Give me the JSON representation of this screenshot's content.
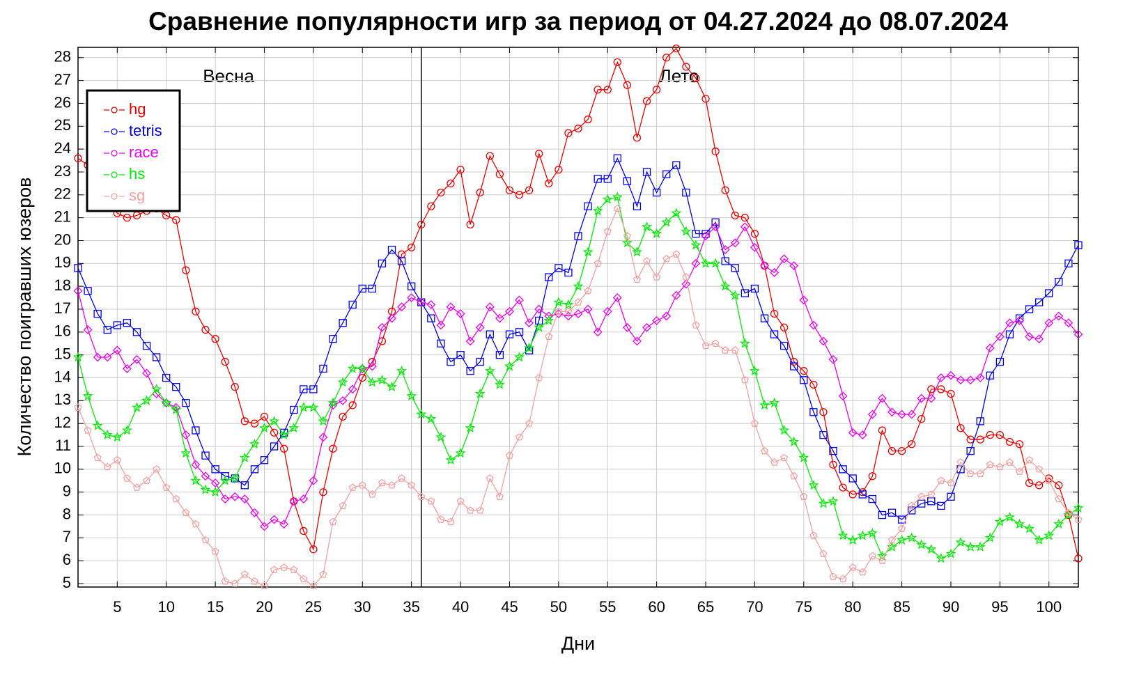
{
  "chart_data": {
    "type": "line",
    "title": "Сравнение популярности игр за период от 04.27.2024 до 08.07.2024",
    "xlabel": "Дни",
    "ylabel": "Количество поигравших юзеров",
    "annotations": [
      "Весна",
      "Лето"
    ],
    "vline": 36,
    "x": [
      1,
      2,
      3,
      4,
      5,
      6,
      7,
      8,
      9,
      10,
      11,
      12,
      13,
      14,
      15,
      16,
      17,
      18,
      19,
      20,
      21,
      22,
      23,
      24,
      25,
      26,
      27,
      28,
      29,
      30,
      31,
      32,
      33,
      34,
      35,
      36,
      37,
      38,
      39,
      40,
      41,
      42,
      43,
      44,
      45,
      46,
      47,
      48,
      49,
      50,
      51,
      52,
      53,
      54,
      55,
      56,
      57,
      58,
      59,
      60,
      61,
      62,
      63,
      64,
      65,
      66,
      67,
      68,
      69,
      70,
      71,
      72,
      73,
      74,
      75,
      76,
      77,
      78,
      79,
      80,
      81,
      82,
      83,
      84,
      85,
      86,
      87,
      88,
      89,
      90,
      91,
      92,
      93,
      94,
      95,
      96,
      97,
      98,
      99,
      100,
      101,
      102,
      103
    ],
    "xlim": [
      1,
      103
    ],
    "ylim": [
      4.85,
      28.45
    ],
    "xticks": [
      5,
      10,
      15,
      20,
      25,
      30,
      35,
      40,
      45,
      50,
      55,
      60,
      65,
      70,
      75,
      80,
      85,
      90,
      95,
      100
    ],
    "yticks": [
      5,
      6,
      7,
      8,
      9,
      10,
      11,
      12,
      13,
      14,
      15,
      16,
      17,
      18,
      19,
      20,
      21,
      22,
      23,
      24,
      25,
      26,
      27,
      28
    ],
    "grid": true,
    "legend": "upper left",
    "series": [
      {
        "name": "hg",
        "color": "#ee0000",
        "marker": "circle",
        "values": [
          23.6,
          23.3,
          22.5,
          21.8,
          21.2,
          21.0,
          21.1,
          21.3,
          21.4,
          21.1,
          20.9,
          18.7,
          16.9,
          16.1,
          15.7,
          14.7,
          13.6,
          12.1,
          12.0,
          12.3,
          11.6,
          10.9,
          8.6,
          7.3,
          6.5,
          9.0,
          10.9,
          12.3,
          12.8,
          14.0,
          14.7,
          15.6,
          16.9,
          19.4,
          19.7,
          20.7,
          21.5,
          22.1,
          22.5,
          23.1,
          20.7,
          22.1,
          23.7,
          22.9,
          22.2,
          22.0,
          22.2,
          23.8,
          22.5,
          23.1,
          24.7,
          24.9,
          25.3,
          26.6,
          26.6,
          27.8,
          26.8,
          24.5,
          26.1,
          26.6,
          28.0,
          28.4,
          27.6,
          27.1,
          26.2,
          23.9,
          22.2,
          21.1,
          21.0,
          20.3,
          18.9,
          16.8,
          16.2,
          14.7,
          14.3,
          13.7,
          12.5,
          10.2,
          9.2,
          8.9,
          9.0,
          9.7,
          11.7,
          10.8,
          10.8,
          11.1,
          12.2,
          13.5,
          13.5,
          13.3,
          11.8,
          11.3,
          11.3,
          11.5,
          11.5,
          11.2,
          11.1,
          9.4,
          9.3,
          9.6,
          9.3,
          8.0,
          6.1
        ]
      },
      {
        "name": "tetris",
        "color": "#0000ee",
        "marker": "square",
        "values": [
          18.8,
          17.8,
          16.8,
          16.1,
          16.3,
          16.4,
          16.0,
          15.4,
          14.9,
          14.0,
          13.6,
          12.9,
          11.7,
          10.6,
          10.0,
          9.7,
          9.6,
          9.3,
          10.0,
          10.4,
          11.0,
          11.6,
          12.6,
          13.5,
          13.5,
          14.4,
          15.7,
          16.4,
          17.2,
          17.9,
          17.9,
          19.0,
          19.6,
          19.1,
          18.0,
          17.3,
          16.6,
          15.5,
          14.7,
          15.0,
          14.3,
          14.7,
          15.9,
          15.0,
          15.9,
          16.0,
          15.2,
          16.5,
          18.4,
          18.8,
          18.6,
          20.2,
          21.5,
          22.7,
          22.7,
          23.6,
          22.6,
          21.5,
          23.0,
          22.1,
          22.9,
          23.3,
          22.1,
          20.3,
          20.3,
          20.8,
          19.1,
          18.8,
          17.7,
          17.9,
          16.6,
          15.9,
          15.4,
          14.5,
          13.9,
          12.5,
          11.5,
          10.8,
          10.0,
          9.6,
          8.9,
          8.7,
          8.0,
          8.1,
          7.8,
          8.2,
          8.5,
          8.6,
          8.4,
          8.8,
          10.0,
          10.8,
          12.1,
          14.1,
          14.7,
          15.9,
          16.6,
          17.0,
          17.3,
          17.7,
          18.2,
          19.0,
          19.8
        ]
      },
      {
        "name": "race",
        "color": "#ee00ee",
        "marker": "diamond",
        "values": [
          17.8,
          16.1,
          14.9,
          14.9,
          15.2,
          14.4,
          14.8,
          14.2,
          13.3,
          12.9,
          12.7,
          11.5,
          10.2,
          9.7,
          9.4,
          8.7,
          8.8,
          8.7,
          8.1,
          7.5,
          7.8,
          7.6,
          8.6,
          8.7,
          9.5,
          11.4,
          12.8,
          13.0,
          13.5,
          14.4,
          14.5,
          16.2,
          16.6,
          17.1,
          17.5,
          17.3,
          17.2,
          16.3,
          17.1,
          16.8,
          15.6,
          16.2,
          17.1,
          16.6,
          16.9,
          17.4,
          16.4,
          17.0,
          16.7,
          16.8,
          16.7,
          16.8,
          17.0,
          16.0,
          16.9,
          17.5,
          16.2,
          15.6,
          16.2,
          16.5,
          16.7,
          17.6,
          18.1,
          19.0,
          20.2,
          20.6,
          19.6,
          19.9,
          20.6,
          19.7,
          18.9,
          18.6,
          19.2,
          18.9,
          17.4,
          16.3,
          15.6,
          14.8,
          13.2,
          11.6,
          11.5,
          12.4,
          13.1,
          12.5,
          12.4,
          12.4,
          13.1,
          13.1,
          14.0,
          14.1,
          13.9,
          13.9,
          14.0,
          15.3,
          15.8,
          16.4,
          16.5,
          15.8,
          15.7,
          16.4,
          16.7,
          16.4,
          15.9
        ]
      },
      {
        "name": "hs",
        "color": "#00ee00",
        "marker": "star",
        "values": [
          14.9,
          13.2,
          11.9,
          11.5,
          11.4,
          11.7,
          12.7,
          13.0,
          13.5,
          12.9,
          12.6,
          10.7,
          9.5,
          9.1,
          9.0,
          9.5,
          9.6,
          10.5,
          11.1,
          11.8,
          12.1,
          11.5,
          11.8,
          12.7,
          12.7,
          12.1,
          12.9,
          13.8,
          14.4,
          14.4,
          13.8,
          13.9,
          13.6,
          14.3,
          13.2,
          12.4,
          12.2,
          11.4,
          10.4,
          10.7,
          11.8,
          13.3,
          14.3,
          13.7,
          14.5,
          14.9,
          15.3,
          16.2,
          16.5,
          17.3,
          17.2,
          18.0,
          19.5,
          21.3,
          21.8,
          21.9,
          19.9,
          19.5,
          20.6,
          20.3,
          20.8,
          21.2,
          20.4,
          19.8,
          19.0,
          19.0,
          18.0,
          17.6,
          15.5,
          14.3,
          12.8,
          12.9,
          11.7,
          11.2,
          10.5,
          9.3,
          8.5,
          8.6,
          7.1,
          6.9,
          7.1,
          7.2,
          6.2,
          6.6,
          6.9,
          7.0,
          6.7,
          6.5,
          6.1,
          6.3,
          6.8,
          6.6,
          6.6,
          7.0,
          7.7,
          7.9,
          7.6,
          7.4,
          6.9,
          7.1,
          7.6,
          8.0,
          8.3
        ]
      },
      {
        "name": "sg",
        "color": "#f4a0a0",
        "marker": "pentagon",
        "values": [
          12.7,
          11.7,
          10.5,
          10.1,
          10.4,
          9.6,
          9.2,
          9.5,
          10.0,
          9.2,
          8.7,
          8.1,
          7.6,
          6.9,
          6.4,
          5.1,
          5.0,
          5.4,
          5.1,
          4.9,
          5.6,
          5.7,
          5.6,
          5.2,
          4.9,
          5.4,
          7.7,
          8.4,
          9.2,
          9.3,
          8.9,
          9.4,
          9.3,
          9.6,
          9.3,
          8.8,
          8.6,
          7.8,
          7.7,
          8.6,
          8.2,
          8.2,
          9.6,
          8.8,
          10.6,
          11.4,
          12.0,
          14.0,
          15.8,
          16.9,
          16.9,
          17.3,
          17.8,
          19.0,
          20.4,
          21.4,
          20.2,
          18.3,
          19.1,
          18.4,
          19.2,
          19.4,
          18.4,
          16.3,
          15.4,
          15.5,
          15.2,
          15.2,
          13.9,
          12.0,
          10.8,
          10.3,
          10.5,
          9.7,
          8.8,
          7.1,
          6.3,
          5.3,
          5.2,
          5.7,
          5.5,
          6.2,
          6.0,
          6.9,
          7.4,
          8.4,
          8.8,
          8.9,
          9.5,
          9.4,
          10.3,
          9.8,
          9.8,
          10.2,
          10.1,
          10.3,
          9.9,
          10.4,
          10.0,
          9.5,
          8.7,
          8.1,
          7.8
        ]
      }
    ]
  }
}
